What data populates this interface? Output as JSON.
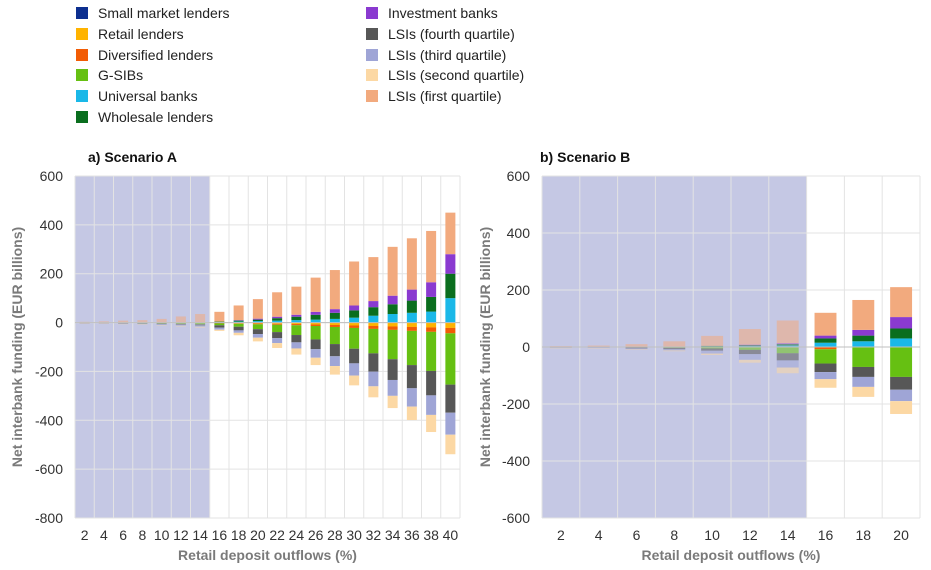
{
  "legend": [
    {
      "name": "Small market lenders",
      "color": "#0d2f8f"
    },
    {
      "name": "Retail lenders",
      "color": "#ffb300"
    },
    {
      "name": "Diversified lenders",
      "color": "#f25c05"
    },
    {
      "name": "G-SIBs",
      "color": "#66c012"
    },
    {
      "name": "Universal banks",
      "color": "#1ab8e8"
    },
    {
      "name": "Wholesale lenders",
      "color": "#0a6e1e"
    },
    {
      "name": "Investment banks",
      "color": "#8a3ad0"
    },
    {
      "name": "LSIs (fourth quartile)",
      "color": "#575757"
    },
    {
      "name": "LSIs (third quartile)",
      "color": "#9fa5d6"
    },
    {
      "name": "LSIs (second quartile)",
      "color": "#fcd8a4"
    },
    {
      "name": "LSIs (first quartile)",
      "color": "#f2aa7e"
    }
  ],
  "chart_data": [
    {
      "type": "bar",
      "stacked": true,
      "title": "a) Scenario A",
      "xlabel": "Retail deposit outflows (%)",
      "ylabel": "Net interbank funding (EUR billions)",
      "ylim": [
        -800,
        600
      ],
      "yticks": [
        600,
        400,
        200,
        0,
        -200,
        -400,
        -600,
        -800
      ],
      "grid": true,
      "shaded_region": {
        "from": "2",
        "to": "14"
      },
      "categories": [
        "2",
        "4",
        "6",
        "8",
        "10",
        "12",
        "14",
        "16",
        "18",
        "20",
        "22",
        "24",
        "26",
        "28",
        "30",
        "32",
        "34",
        "36",
        "38",
        "40"
      ],
      "series": [
        {
          "name": "Small market lenders",
          "values": [
            0,
            0,
            0,
            0,
            0,
            0,
            0,
            0,
            0,
            0,
            0,
            0,
            0,
            0,
            0,
            0,
            0,
            0,
            0,
            0
          ]
        },
        {
          "name": "Retail lenders",
          "values": [
            0,
            0,
            0,
            0,
            0,
            0,
            0,
            -2,
            -3,
            -4,
            -5,
            -6,
            -8,
            -10,
            -12,
            -14,
            -16,
            -18,
            -20,
            -22
          ]
        },
        {
          "name": "Diversified lenders",
          "values": [
            0,
            0,
            0,
            0,
            0,
            0,
            0,
            -1,
            -2,
            -3,
            -4,
            -5,
            -6,
            -8,
            -10,
            -12,
            -14,
            -16,
            -18,
            -22
          ]
        },
        {
          "name": "G-SIBs",
          "values": [
            -1,
            -1,
            -2,
            -3,
            -4,
            -5,
            -7,
            -8,
            -12,
            -20,
            -30,
            -40,
            -55,
            -70,
            -85,
            -100,
            -120,
            -140,
            -160,
            -210
          ]
        },
        {
          "name": "Universal banks",
          "values": [
            0,
            0,
            0,
            0,
            0,
            0,
            0,
            2,
            4,
            6,
            8,
            10,
            12,
            15,
            20,
            28,
            35,
            40,
            45,
            100
          ]
        },
        {
          "name": "Wholesale lenders",
          "values": [
            0,
            0,
            0,
            0,
            0,
            0,
            0,
            2,
            4,
            6,
            10,
            14,
            20,
            25,
            30,
            35,
            40,
            50,
            60,
            100
          ]
        },
        {
          "name": "Investment banks",
          "values": [
            0,
            0,
            0,
            0,
            0,
            0,
            0,
            0,
            2,
            4,
            6,
            8,
            12,
            15,
            20,
            25,
            35,
            45,
            60,
            80
          ]
        },
        {
          "name": "LSIs (fourth quartile)",
          "values": [
            -1,
            -1,
            -2,
            -2,
            -3,
            -4,
            -5,
            -10,
            -15,
            -20,
            -25,
            -30,
            -40,
            -50,
            -60,
            -75,
            -85,
            -95,
            -100,
            -115
          ]
        },
        {
          "name": "LSIs (third quartile)",
          "values": [
            -1,
            -1,
            -1,
            -2,
            -3,
            -4,
            -5,
            -8,
            -10,
            -15,
            -20,
            -25,
            -35,
            -40,
            -50,
            -60,
            -65,
            -75,
            -80,
            -90
          ]
        },
        {
          "name": "LSIs (second quartile)",
          "values": [
            -1,
            -1,
            -1,
            -2,
            -2,
            -3,
            -4,
            -5,
            -10,
            -15,
            -20,
            -25,
            -30,
            -35,
            -40,
            -45,
            -50,
            -55,
            -70,
            -80
          ]
        },
        {
          "name": "LSIs (first quartile)",
          "values": [
            3,
            5,
            8,
            10,
            15,
            25,
            35,
            40,
            60,
            80,
            100,
            115,
            140,
            160,
            180,
            180,
            200,
            210,
            210,
            170
          ]
        }
      ]
    },
    {
      "type": "bar",
      "stacked": true,
      "title": "b) Scenario B",
      "xlabel": "Retail deposit outflows (%)",
      "ylabel": "Net interbank funding (EUR billions)",
      "ylim": [
        -600,
        600
      ],
      "yticks": [
        600,
        400,
        200,
        0,
        -200,
        -400,
        -600
      ],
      "grid": true,
      "shaded_region": {
        "from": "2",
        "to": "14"
      },
      "categories": [
        "2",
        "4",
        "6",
        "8",
        "10",
        "12",
        "14",
        "16",
        "18",
        "20"
      ],
      "series": [
        {
          "name": "Small market lenders",
          "values": [
            0,
            0,
            0,
            0,
            0,
            0,
            0,
            0,
            0,
            0
          ]
        },
        {
          "name": "Retail lenders",
          "values": [
            0,
            0,
            0,
            0,
            0,
            0,
            0,
            0,
            0,
            0
          ]
        },
        {
          "name": "Diversified lenders",
          "values": [
            0,
            0,
            0,
            0,
            0,
            0,
            -2,
            -8,
            0,
            0
          ]
        },
        {
          "name": "G-SIBs",
          "values": [
            0,
            0,
            -2,
            -3,
            -5,
            -10,
            -20,
            -50,
            -70,
            -105
          ]
        },
        {
          "name": "Universal banks",
          "values": [
            0,
            0,
            0,
            0,
            2,
            3,
            5,
            15,
            20,
            30
          ]
        },
        {
          "name": "Wholesale lenders",
          "values": [
            0,
            0,
            0,
            0,
            2,
            3,
            5,
            15,
            20,
            35
          ]
        },
        {
          "name": "Investment banks",
          "values": [
            0,
            0,
            0,
            0,
            0,
            2,
            3,
            10,
            20,
            40
          ]
        },
        {
          "name": "LSIs (fourth quartile)",
          "values": [
            -2,
            -2,
            -3,
            -5,
            -8,
            -15,
            -25,
            -30,
            -35,
            -45
          ]
        },
        {
          "name": "LSIs (third quartile)",
          "values": [
            -1,
            -2,
            -3,
            -4,
            -10,
            -20,
            -25,
            -25,
            -35,
            -40
          ]
        },
        {
          "name": "LSIs (second quartile)",
          "values": [
            -1,
            -1,
            -2,
            -3,
            -5,
            -10,
            -20,
            -30,
            -35,
            -45
          ]
        },
        {
          "name": "LSIs (first quartile)",
          "values": [
            3,
            5,
            10,
            20,
            35,
            55,
            80,
            80,
            105,
            105
          ]
        }
      ]
    }
  ]
}
